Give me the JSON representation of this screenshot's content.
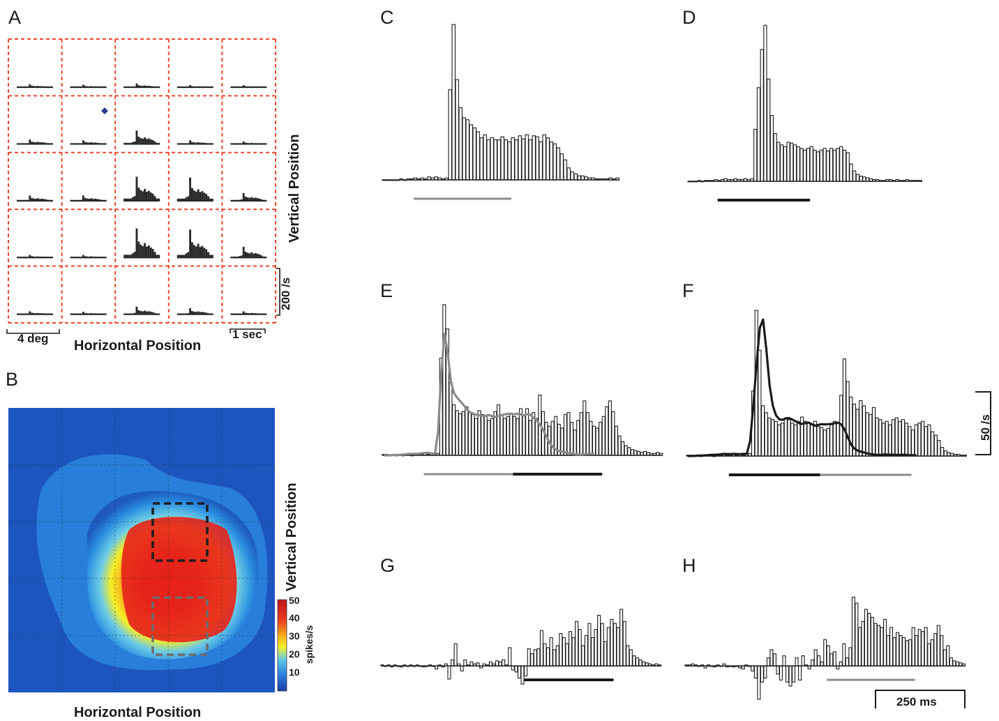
{
  "panel_labels": {
    "A": "A",
    "B": "B",
    "C": "C",
    "D": "D",
    "E": "E",
    "F": "F",
    "G": "G",
    "H": "H"
  },
  "panel_a": {
    "xlabel": "Horizontal Position",
    "ylabel": "Vertical Position",
    "scale_x_deg": "4 deg",
    "scale_time": "1 sec",
    "scale_rate": "200 /s",
    "grid_color": "#f0472a",
    "fixation_marker_color": "#2b3f8c"
  },
  "panel_b": {
    "xlabel": "Horizontal Position",
    "ylabel": "Vertical Position",
    "colorbar_label": "spikes/s",
    "colorbar_ticks": [
      "50",
      "40",
      "30",
      "20",
      "10"
    ],
    "box_colors": {
      "top": "#1e1e1e",
      "bottom": "#6d6d6d"
    }
  },
  "panels_right": {
    "scale_rate": "50 /s",
    "scale_time": "250 ms",
    "stim_bar_colors": {
      "gray": "#8c8c8c",
      "black": "#1a1a1a"
    }
  },
  "chart_data": [
    {
      "panel": "A",
      "type": "bar",
      "title": "",
      "xlabel": "Horizontal Position",
      "ylabel": "Vertical Position",
      "grid": "5x5",
      "note_values": "relative peak heights of PSTH miniatures, rows top to bottom, columns left to right",
      "peaks": [
        [
          0.08,
          0.07,
          0.1,
          0.06,
          0.06
        ],
        [
          0.12,
          0.1,
          0.35,
          0.1,
          0.07
        ],
        [
          0.14,
          0.14,
          0.62,
          0.6,
          0.2
        ],
        [
          0.07,
          0.07,
          0.75,
          0.72,
          0.28
        ],
        [
          0.08,
          0.07,
          0.2,
          0.16,
          0.08
        ]
      ]
    },
    {
      "panel": "B",
      "type": "heatmap",
      "xlabel": "Horizontal Position",
      "ylabel": "Vertical Position",
      "colorbar_ticks": [
        50,
        40,
        30,
        20,
        10
      ],
      "colorbar_label": "spikes/s",
      "zlim": [
        5,
        50
      ]
    },
    {
      "panel": "C",
      "type": "bar",
      "unit": "spikes/s",
      "values": [
        0,
        0,
        0,
        0,
        0,
        1,
        0,
        1,
        1,
        2,
        1,
        2,
        1,
        3,
        2,
        3,
        2,
        1,
        2,
        90,
        155,
        100,
        72,
        62,
        60,
        55,
        52,
        48,
        42,
        45,
        40,
        42,
        40,
        40,
        43,
        40,
        38,
        42,
        40,
        44,
        41,
        45,
        40,
        44,
        43,
        38,
        45,
        42,
        38,
        36,
        32,
        26,
        20,
        12,
        8,
        6,
        4,
        4,
        3,
        2,
        2,
        1,
        1,
        1,
        1,
        2,
        1,
        2
      ],
      "stimulus_bars": [
        {
          "color": "gray",
          "start_bin": 9,
          "end_bin": 37
        }
      ]
    },
    {
      "panel": "D",
      "type": "bar",
      "unit": "spikes/s",
      "values": [
        0,
        0,
        0,
        1,
        0,
        1,
        1,
        1,
        2,
        1,
        2,
        3,
        2,
        2,
        3,
        2,
        2,
        3,
        2,
        3,
        60,
        108,
        152,
        180,
        118,
        76,
        55,
        45,
        42,
        40,
        45,
        44,
        42,
        40,
        38,
        36,
        38,
        40,
        36,
        34,
        36,
        38,
        35,
        38,
        36,
        38,
        40,
        36,
        33,
        20,
        12,
        8,
        6,
        5,
        4,
        3,
        2,
        2,
        1,
        1,
        2,
        2,
        1,
        2,
        1,
        1,
        2,
        1,
        1,
        1,
        1
      ],
      "stimulus_bars": [
        {
          "color": "black",
          "start_bin": 9,
          "end_bin": 37
        }
      ]
    },
    {
      "panel": "E",
      "type": "bar",
      "unit": "spikes/s",
      "values": [
        1,
        1,
        0,
        1,
        0,
        1,
        0,
        1,
        1,
        0,
        1,
        1,
        1,
        2,
        1,
        2,
        1,
        2,
        100,
        155,
        130,
        75,
        52,
        46,
        43,
        45,
        50,
        44,
        42,
        38,
        46,
        42,
        40,
        36,
        38,
        45,
        52,
        42,
        38,
        40,
        43,
        40,
        38,
        48,
        42,
        48,
        36,
        44,
        38,
        62,
        45,
        34,
        30,
        35,
        40,
        32,
        28,
        42,
        44,
        34,
        26,
        36,
        44,
        56,
        44,
        35,
        30,
        28,
        34,
        40,
        50,
        56,
        45,
        30,
        20,
        14,
        10,
        8,
        6,
        5,
        4,
        3,
        4,
        3,
        2,
        2,
        3,
        2
      ],
      "stimulus_bars": [
        {
          "color": "gray",
          "start_bin": 13,
          "end_bin": 41
        },
        {
          "color": "black",
          "start_bin": 41,
          "end_bin": 69
        }
      ],
      "overlay_curve": {
        "color": "gray",
        "of_panel": "C"
      }
    },
    {
      "panel": "F",
      "type": "bar",
      "unit": "spikes/s",
      "values": [
        1,
        1,
        0,
        1,
        0,
        1,
        1,
        1,
        0,
        1,
        1,
        2,
        1,
        1,
        2,
        1,
        2,
        1,
        2,
        3,
        75,
        168,
        122,
        58,
        50,
        44,
        42,
        40,
        36,
        38,
        44,
        42,
        38,
        36,
        40,
        45,
        40,
        38,
        36,
        40,
        34,
        33,
        30,
        32,
        36,
        40,
        38,
        70,
        112,
        86,
        68,
        60,
        54,
        64,
        58,
        50,
        48,
        56,
        44,
        42,
        38,
        40,
        36,
        42,
        44,
        40,
        42,
        38,
        34,
        30,
        36,
        38,
        40,
        34,
        36,
        28,
        24,
        18,
        10,
        6,
        4,
        3,
        2,
        2,
        1,
        1
      ],
      "stimulus_bars": [
        {
          "color": "black",
          "start_bin": 13,
          "end_bin": 41
        },
        {
          "color": "gray",
          "start_bin": 41,
          "end_bin": 69
        }
      ],
      "overlay_curve": {
        "color": "black",
        "of_panel": "D"
      }
    },
    {
      "panel": "G",
      "type": "bar",
      "unit": "spikes/s",
      "values": [
        1,
        0,
        1,
        -1,
        1,
        0,
        -1,
        1,
        0,
        1,
        0,
        1,
        0,
        -1,
        0,
        1,
        0,
        -3,
        1,
        -1,
        2,
        -13,
        6,
        22,
        2,
        -5,
        6,
        1,
        4,
        2,
        3,
        -2,
        2,
        1,
        4,
        2,
        5,
        4,
        6,
        1,
        18,
        -4,
        -6,
        -12,
        -18,
        -10,
        17,
        12,
        16,
        17,
        35,
        22,
        18,
        28,
        16,
        20,
        32,
        28,
        22,
        34,
        28,
        44,
        36,
        20,
        30,
        42,
        28,
        36,
        50,
        42,
        24,
        38,
        46,
        42,
        38,
        56,
        44,
        20,
        16,
        10,
        8,
        6,
        4,
        3,
        2,
        1,
        2,
        1
      ],
      "stimulus_bars": [
        {
          "color": "black",
          "start_bin": 45,
          "end_bin": 73
        }
      ]
    },
    {
      "panel": "H",
      "type": "bar",
      "unit": "spikes/s",
      "values": [
        1,
        1,
        2,
        1,
        0,
        1,
        -2,
        1,
        0,
        -1,
        1,
        0,
        2,
        -1,
        0,
        -1,
        0,
        -2,
        -3,
        1,
        0,
        -5,
        -12,
        -33,
        -16,
        -12,
        8,
        16,
        12,
        -8,
        -14,
        10,
        -16,
        -20,
        -16,
        8,
        -14,
        10,
        1,
        -3,
        6,
        16,
        10,
        4,
        26,
        20,
        12,
        14,
        -3,
        4,
        22,
        8,
        18,
        68,
        62,
        38,
        44,
        56,
        52,
        48,
        42,
        40,
        38,
        46,
        30,
        38,
        28,
        33,
        30,
        28,
        25,
        26,
        38,
        30,
        36,
        34,
        38,
        22,
        26,
        32,
        40,
        30,
        16,
        20,
        8,
        5,
        4,
        3,
        2
      ],
      "stimulus_bars": [
        {
          "color": "gray",
          "start_bin": 45,
          "end_bin": 73
        }
      ]
    }
  ]
}
